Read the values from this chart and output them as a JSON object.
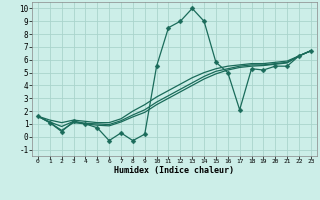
{
  "xlabel": "Humidex (Indice chaleur)",
  "background_color": "#cceee8",
  "grid_color": "#aad4cc",
  "line_color": "#1a6b5a",
  "xlim": [
    -0.5,
    23.5
  ],
  "ylim": [
    -1.5,
    10.5
  ],
  "xticks": [
    0,
    1,
    2,
    3,
    4,
    5,
    6,
    7,
    8,
    9,
    10,
    11,
    12,
    13,
    14,
    15,
    16,
    17,
    18,
    19,
    20,
    21,
    22,
    23
  ],
  "yticks": [
    -1,
    0,
    1,
    2,
    3,
    4,
    5,
    6,
    7,
    8,
    9,
    10
  ],
  "series": [
    [
      1.6,
      1.1,
      0.4,
      1.2,
      1.0,
      0.7,
      -0.3,
      0.3,
      -0.3,
      0.2,
      5.5,
      8.5,
      9.0,
      10.0,
      9.0,
      5.8,
      5.0,
      2.1,
      5.3,
      5.2,
      5.5,
      5.5,
      6.3,
      6.7
    ],
    [
      1.6,
      1.3,
      1.1,
      1.3,
      1.2,
      1.1,
      1.1,
      1.4,
      2.0,
      2.5,
      3.1,
      3.6,
      4.1,
      4.6,
      5.0,
      5.3,
      5.5,
      5.6,
      5.7,
      5.7,
      5.8,
      5.9,
      6.3,
      6.7
    ],
    [
      1.6,
      1.15,
      0.8,
      1.2,
      1.05,
      1.0,
      0.95,
      1.25,
      1.7,
      2.1,
      2.7,
      3.2,
      3.7,
      4.2,
      4.7,
      5.1,
      5.3,
      5.5,
      5.6,
      5.6,
      5.7,
      5.8,
      6.3,
      6.7
    ],
    [
      1.6,
      1.1,
      0.5,
      1.1,
      1.0,
      0.9,
      0.85,
      1.15,
      1.55,
      1.9,
      2.5,
      3.0,
      3.5,
      4.0,
      4.5,
      4.9,
      5.2,
      5.4,
      5.5,
      5.55,
      5.65,
      5.75,
      6.3,
      6.7
    ]
  ],
  "marker": "D",
  "markersize": 2.5,
  "linewidth": 0.9
}
